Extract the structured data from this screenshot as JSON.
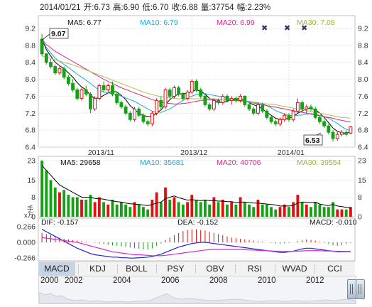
{
  "header": {
    "date": "2014/01/21",
    "open": "开:6.73",
    "high": "高:6.90",
    "low": "低:6.70",
    "close": "收:6.88",
    "volume": "量:37754",
    "change": "幅:2.23%"
  },
  "colors": {
    "up": "#e01010",
    "down": "#16a016",
    "ma5": "#000000",
    "ma10": "#1ea7d6",
    "ma20": "#d42a8a",
    "ma30": "#b3c14c",
    "dif": "#222222",
    "dea": "#d42ad4",
    "macd_line": "#2020d0"
  },
  "price_panel": {
    "ma_labels": [
      "MA5: 6.77",
      "MA10: 6.79",
      "MA20: 6.99",
      "MA30: 7.08"
    ],
    "y_ticks": [
      "9.2",
      "8.8",
      "8.4",
      "8.0",
      "7.6",
      "7.2",
      "6.8",
      "6.4"
    ],
    "x_ticks": [
      "2013/11",
      "2013/12",
      "2014/01"
    ],
    "high_label": "9.07",
    "low_label": "6.53"
  },
  "volume_panel": {
    "ma_labels": [
      "MA5: 29658",
      "MA10: 35681",
      "MA20: 40706",
      "MA30: 39554"
    ],
    "y_ticks": [
      "23",
      "15",
      "8",
      "0"
    ],
    "unit": "x万",
    "unit_top": "手"
  },
  "macd_panel": {
    "dif_label": "DIF: -0.157",
    "dea_label": "DEA: -0.152",
    "macd_label": "MACD: -0.010",
    "y_ticks": [
      "0.266",
      "0.000",
      "-0.266"
    ]
  },
  "tabs": [
    "MACD",
    "KDJ",
    "BOLL",
    "PSY",
    "OBV",
    "RSI",
    "WVAD",
    "CCI"
  ],
  "timeline": {
    "years": [
      "2000",
      "2002",
      "2004",
      "2006",
      "2008",
      "2010",
      "2012"
    ]
  },
  "chart_data": {
    "type": "candlestick",
    "ylim": [
      6.4,
      9.2
    ],
    "candles": [
      [
        8.95,
        9.07,
        8.55,
        8.6
      ],
      [
        8.6,
        8.62,
        8.35,
        8.4
      ],
      [
        8.4,
        8.48,
        8.25,
        8.3
      ],
      [
        8.3,
        8.35,
        8.1,
        8.15
      ],
      [
        8.15,
        8.3,
        8.1,
        8.25
      ],
      [
        8.25,
        8.3,
        8.0,
        8.05
      ],
      [
        8.05,
        8.1,
        7.85,
        7.9
      ],
      [
        7.9,
        8.0,
        7.7,
        7.75
      ],
      [
        7.75,
        7.8,
        7.5,
        7.55
      ],
      [
        7.55,
        7.8,
        7.5,
        7.75
      ],
      [
        7.75,
        7.85,
        7.6,
        7.65
      ],
      [
        7.65,
        7.7,
        7.2,
        7.3
      ],
      [
        7.3,
        7.6,
        7.25,
        7.55
      ],
      [
        7.55,
        7.9,
        7.5,
        7.85
      ],
      [
        7.85,
        7.95,
        7.7,
        7.75
      ],
      [
        7.75,
        7.9,
        7.7,
        7.85
      ],
      [
        7.85,
        7.95,
        7.6,
        7.65
      ],
      [
        7.65,
        7.7,
        7.4,
        7.45
      ],
      [
        7.45,
        7.5,
        7.3,
        7.35
      ],
      [
        7.35,
        7.4,
        7.15,
        7.2
      ],
      [
        7.2,
        7.25,
        7.0,
        7.05
      ],
      [
        7.05,
        7.35,
        7.0,
        7.3
      ],
      [
        7.3,
        7.35,
        7.1,
        7.15
      ],
      [
        7.15,
        7.2,
        6.95,
        7.0
      ],
      [
        7.0,
        7.05,
        6.9,
        6.95
      ],
      [
        6.95,
        7.25,
        6.9,
        7.2
      ],
      [
        7.2,
        7.55,
        7.15,
        7.5
      ],
      [
        7.5,
        7.6,
        7.3,
        7.35
      ],
      [
        7.35,
        7.8,
        7.3,
        7.75
      ],
      [
        7.75,
        7.8,
        7.55,
        7.6
      ],
      [
        7.6,
        7.85,
        7.55,
        7.8
      ],
      [
        7.8,
        7.85,
        7.6,
        7.65
      ],
      [
        7.65,
        7.7,
        7.5,
        7.55
      ],
      [
        7.55,
        7.75,
        7.5,
        7.7
      ],
      [
        7.7,
        8.0,
        7.65,
        7.95
      ],
      [
        7.95,
        8.0,
        7.7,
        7.75
      ],
      [
        7.75,
        7.8,
        7.55,
        7.6
      ],
      [
        7.6,
        7.65,
        7.35,
        7.4
      ],
      [
        7.4,
        7.45,
        7.25,
        7.3
      ],
      [
        7.3,
        7.55,
        7.25,
        7.5
      ],
      [
        7.5,
        7.55,
        7.4,
        7.45
      ],
      [
        7.45,
        7.65,
        7.4,
        7.6
      ],
      [
        7.6,
        7.65,
        7.45,
        7.5
      ],
      [
        7.5,
        7.6,
        7.4,
        7.55
      ],
      [
        7.55,
        7.6,
        7.45,
        7.5
      ],
      [
        7.5,
        7.65,
        7.45,
        7.6
      ],
      [
        7.6,
        7.62,
        7.35,
        7.4
      ],
      [
        7.4,
        7.45,
        7.25,
        7.3
      ],
      [
        7.3,
        7.35,
        7.15,
        7.2
      ],
      [
        7.2,
        7.45,
        7.15,
        7.4
      ],
      [
        7.4,
        7.45,
        7.2,
        7.25
      ],
      [
        7.25,
        7.3,
        7.05,
        7.1
      ],
      [
        7.1,
        7.15,
        6.95,
        7.0
      ],
      [
        7.0,
        7.05,
        6.9,
        6.95
      ],
      [
        6.95,
        7.1,
        6.9,
        7.05
      ],
      [
        7.05,
        7.2,
        7.0,
        7.15
      ],
      [
        7.15,
        7.2,
        7.0,
        7.05
      ],
      [
        7.05,
        7.3,
        7.0,
        7.25
      ],
      [
        7.25,
        7.55,
        7.2,
        7.45
      ],
      [
        7.45,
        7.5,
        7.25,
        7.3
      ],
      [
        7.3,
        7.4,
        7.2,
        7.35
      ],
      [
        7.35,
        7.4,
        7.25,
        7.3
      ],
      [
        7.3,
        7.35,
        7.05,
        7.1
      ],
      [
        7.1,
        7.15,
        6.95,
        7.0
      ],
      [
        7.0,
        7.05,
        6.85,
        6.9
      ],
      [
        6.9,
        6.95,
        6.7,
        6.75
      ],
      [
        6.75,
        6.8,
        6.53,
        6.6
      ],
      [
        6.6,
        6.75,
        6.55,
        6.7
      ],
      [
        6.7,
        6.8,
        6.65,
        6.75
      ],
      [
        6.75,
        6.8,
        6.65,
        6.7
      ],
      [
        6.73,
        6.9,
        6.7,
        6.88
      ]
    ],
    "ma_series": [
      {
        "name": "MA5",
        "values": [
          8.95,
          8.7,
          8.55,
          8.4,
          8.32,
          8.25,
          8.15,
          8.05,
          7.92,
          7.82,
          7.75,
          7.62,
          7.55,
          7.56,
          7.62,
          7.68,
          7.72,
          7.7,
          7.62,
          7.52,
          7.38,
          7.28,
          7.2,
          7.15,
          7.12,
          7.12,
          7.2,
          7.28,
          7.4,
          7.52,
          7.6,
          7.65,
          7.66,
          7.66,
          7.72,
          7.75,
          7.72,
          7.65,
          7.55,
          7.5,
          7.45,
          7.46,
          7.48,
          7.52,
          7.54,
          7.54,
          7.5,
          7.45,
          7.4,
          7.36,
          7.3,
          7.22,
          7.15,
          7.08,
          7.05,
          7.06,
          7.08,
          7.12,
          7.2,
          7.25,
          7.3,
          7.32,
          7.28,
          7.2,
          7.1,
          6.98,
          6.85,
          6.77,
          6.74,
          6.72,
          6.77
        ]
      },
      {
        "name": "MA10",
        "values": [
          8.95,
          8.75,
          8.62,
          8.5,
          8.42,
          8.35,
          8.28,
          8.2,
          8.12,
          8.05,
          7.98,
          7.9,
          7.82,
          7.75,
          7.7,
          7.68,
          7.66,
          7.64,
          7.6,
          7.56,
          7.52,
          7.48,
          7.42,
          7.36,
          7.3,
          7.25,
          7.22,
          7.22,
          7.26,
          7.3,
          7.36,
          7.44,
          7.5,
          7.56,
          7.6,
          7.64,
          7.66,
          7.66,
          7.64,
          7.62,
          7.6,
          7.58,
          7.56,
          7.52,
          7.5,
          7.5,
          7.48,
          7.48,
          7.46,
          7.45,
          7.42,
          7.38,
          7.32,
          7.26,
          7.22,
          7.18,
          7.15,
          7.14,
          7.15,
          7.16,
          7.18,
          7.19,
          7.18,
          7.15,
          7.12,
          7.08,
          7.02,
          6.96,
          6.88,
          6.82,
          6.79
        ]
      },
      {
        "name": "MA20",
        "values": [
          8.95,
          8.82,
          8.74,
          8.66,
          8.6,
          8.54,
          8.48,
          8.42,
          8.36,
          8.3,
          8.24,
          8.18,
          8.12,
          8.06,
          8.0,
          7.95,
          7.9,
          7.85,
          7.8,
          7.76,
          7.72,
          7.68,
          7.64,
          7.6,
          7.56,
          7.52,
          7.49,
          7.46,
          7.44,
          7.43,
          7.42,
          7.42,
          7.43,
          7.44,
          7.46,
          7.48,
          7.5,
          7.51,
          7.52,
          7.52,
          7.52,
          7.52,
          7.52,
          7.52,
          7.51,
          7.5,
          7.48,
          7.46,
          7.44,
          7.42,
          7.4,
          7.38,
          7.36,
          7.34,
          7.32,
          7.3,
          7.28,
          7.26,
          7.24,
          7.22,
          7.2,
          7.18,
          7.16,
          7.14,
          7.12,
          7.1,
          7.08,
          7.05,
          7.03,
          7.01,
          6.99
        ]
      },
      {
        "name": "MA30",
        "values": [
          8.55,
          8.52,
          8.49,
          8.46,
          8.43,
          8.4,
          8.37,
          8.34,
          8.3,
          8.26,
          8.22,
          8.18,
          8.14,
          8.1,
          8.06,
          8.02,
          7.98,
          7.94,
          7.9,
          7.86,
          7.82,
          7.78,
          7.74,
          7.7,
          7.67,
          7.64,
          7.61,
          7.59,
          7.57,
          7.56,
          7.55,
          7.54,
          7.54,
          7.54,
          7.54,
          7.54,
          7.54,
          7.54,
          7.54,
          7.54,
          7.53,
          7.52,
          7.51,
          7.5,
          7.49,
          7.48,
          7.47,
          7.46,
          7.45,
          7.44,
          7.43,
          7.42,
          7.41,
          7.4,
          7.38,
          7.36,
          7.34,
          7.32,
          7.3,
          7.28,
          7.26,
          7.24,
          7.22,
          7.2,
          7.18,
          7.16,
          7.14,
          7.12,
          7.1,
          7.09,
          7.08
        ]
      }
    ],
    "volume": {
      "ylim": [
        0,
        23
      ],
      "values": [
        23,
        19,
        15,
        12,
        10,
        11,
        9,
        8,
        8,
        7,
        7,
        9,
        6,
        8,
        6,
        5,
        7,
        5,
        6,
        5,
        4,
        6,
        5,
        4,
        3,
        7,
        10,
        6,
        12,
        7,
        8,
        6,
        5,
        6,
        9,
        7,
        6,
        7,
        5,
        8,
        6,
        7,
        5,
        6,
        5,
        8,
        6,
        5,
        4,
        7,
        5,
        5,
        4,
        3,
        4,
        5,
        4,
        6,
        9,
        6,
        5,
        4,
        6,
        5,
        4,
        4,
        6,
        3,
        3,
        3,
        4
      ],
      "ma5": [
        21,
        19,
        17,
        15,
        13,
        12,
        11,
        10,
        9,
        8,
        8,
        8,
        7.5,
        7.4,
        7.2,
        6.8,
        6.5,
        6.2,
        6,
        5.6,
        5.3,
        5.2,
        5,
        4.8,
        4.6,
        5,
        5.6,
        6,
        7.4,
        8,
        8.5,
        7.8,
        7.3,
        6.8,
        7,
        6.8,
        6.6,
        6.8,
        6.6,
        6.6,
        6.4,
        6.4,
        6.2,
        6.2,
        5.8,
        6,
        6,
        5.8,
        5.6,
        5.6,
        5.4,
        5.2,
        5,
        4.8,
        4.4,
        4.4,
        4.4,
        4.6,
        5.6,
        6,
        6,
        5.8,
        6,
        5.2,
        4.8,
        4.6,
        5,
        4.4,
        4.2,
        3.8,
        3.5
      ]
    },
    "macd": {
      "ylim": [
        -0.3,
        0.3
      ],
      "hist": [
        0.16,
        0.14,
        0.12,
        0.1,
        0.08,
        0.06,
        0.05,
        0.04,
        0.03,
        0.02,
        0.01,
        0.0,
        -0.01,
        -0.02,
        -0.03,
        -0.04,
        -0.05,
        -0.06,
        -0.07,
        -0.08,
        -0.09,
        -0.1,
        -0.11,
        -0.12,
        -0.12,
        -0.1,
        -0.06,
        -0.02,
        0.04,
        0.08,
        0.12,
        0.16,
        0.19,
        0.21,
        0.22,
        0.22,
        0.21,
        0.2,
        0.18,
        0.16,
        0.14,
        0.12,
        0.1,
        0.08,
        0.07,
        0.06,
        0.05,
        0.04,
        0.03,
        0.02,
        0.01,
        0.0,
        -0.01,
        -0.02,
        -0.03,
        -0.02,
        -0.01,
        0.0,
        0.02,
        0.04,
        0.05,
        0.04,
        0.03,
        0.01,
        -0.01,
        -0.03,
        -0.05,
        -0.06,
        -0.05,
        -0.03,
        -0.01
      ],
      "dif": [
        0.22,
        0.18,
        0.14,
        0.1,
        0.06,
        0.02,
        -0.02,
        -0.06,
        -0.1,
        -0.13,
        -0.16,
        -0.19,
        -0.21,
        -0.22,
        -0.23,
        -0.24,
        -0.25,
        -0.25,
        -0.26,
        -0.26,
        -0.266,
        -0.265,
        -0.26,
        -0.255,
        -0.25,
        -0.24,
        -0.22,
        -0.2,
        -0.17,
        -0.14,
        -0.11,
        -0.08,
        -0.06,
        -0.04,
        -0.02,
        -0.01,
        0.0,
        0.0,
        -0.01,
        -0.02,
        -0.03,
        -0.04,
        -0.05,
        -0.06,
        -0.07,
        -0.08,
        -0.09,
        -0.1,
        -0.11,
        -0.12,
        -0.13,
        -0.14,
        -0.15,
        -0.16,
        -0.17,
        -0.17,
        -0.16,
        -0.15,
        -0.13,
        -0.11,
        -0.1,
        -0.1,
        -0.11,
        -0.12,
        -0.13,
        -0.14,
        -0.15,
        -0.16,
        -0.16,
        -0.157,
        -0.157
      ],
      "dea": [
        0.08,
        0.07,
        0.06,
        0.05,
        0.04,
        0.03,
        0.02,
        0.01,
        0.0,
        -0.02,
        -0.04,
        -0.06,
        -0.08,
        -0.1,
        -0.12,
        -0.14,
        -0.16,
        -0.17,
        -0.18,
        -0.19,
        -0.2,
        -0.21,
        -0.21,
        -0.215,
        -0.22,
        -0.225,
        -0.225,
        -0.225,
        -0.22,
        -0.21,
        -0.2,
        -0.19,
        -0.18,
        -0.17,
        -0.16,
        -0.15,
        -0.14,
        -0.13,
        -0.125,
        -0.12,
        -0.12,
        -0.12,
        -0.12,
        -0.12,
        -0.12,
        -0.12,
        -0.125,
        -0.13,
        -0.13,
        -0.135,
        -0.14,
        -0.14,
        -0.145,
        -0.15,
        -0.15,
        -0.155,
        -0.155,
        -0.15,
        -0.15,
        -0.145,
        -0.14,
        -0.14,
        -0.14,
        -0.14,
        -0.145,
        -0.145,
        -0.15,
        -0.15,
        -0.152,
        -0.152,
        -0.152
      ]
    }
  }
}
